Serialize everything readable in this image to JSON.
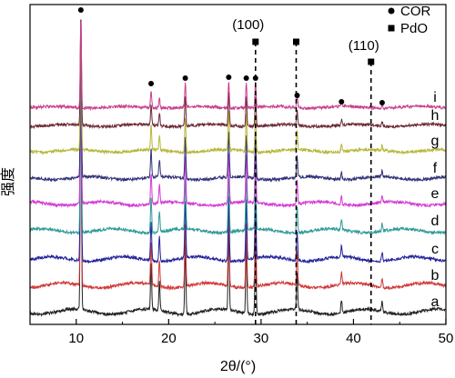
{
  "chart_data": {
    "type": "line",
    "xlabel": "2θ/(°)",
    "ylabel": "强度",
    "xlim": [
      5,
      50
    ],
    "xticks": [
      10,
      20,
      30,
      40,
      50
    ],
    "series_order_bottom_to_top": [
      "a",
      "b",
      "c",
      "d",
      "e",
      "f",
      "g",
      "h",
      "i"
    ],
    "series": [
      {
        "name": "a",
        "color": "#222222"
      },
      {
        "name": "b",
        "color": "#d03a3a"
      },
      {
        "name": "c",
        "color": "#23239a"
      },
      {
        "name": "d",
        "color": "#2f9a98"
      },
      {
        "name": "e",
        "color": "#d33bd3"
      },
      {
        "name": "f",
        "color": "#33337a"
      },
      {
        "name": "g",
        "color": "#b6b63a"
      },
      {
        "name": "h",
        "color": "#6e2a35"
      },
      {
        "name": "i",
        "color": "#c8408e"
      }
    ],
    "peaks_2theta": [
      {
        "x": 10.5,
        "h": 1.0
      },
      {
        "x": 18.1,
        "h": 0.18
      },
      {
        "x": 19.0,
        "h": 0.11
      },
      {
        "x": 21.8,
        "h": 0.26
      },
      {
        "x": 26.5,
        "h": 0.3
      },
      {
        "x": 28.4,
        "h": 0.27
      },
      {
        "x": 29.4,
        "h": 0.28
      },
      {
        "x": 33.9,
        "h": 0.14
      },
      {
        "x": 38.7,
        "h": 0.05
      },
      {
        "x": 43.1,
        "h": 0.04
      }
    ],
    "legend": [
      {
        "marker": "circle",
        "label": "COR"
      },
      {
        "marker": "square",
        "label": "PdO"
      }
    ],
    "cor_markers_2theta": [
      10.5,
      18.1,
      21.8,
      26.5,
      28.4,
      29.4,
      33.9,
      38.7,
      43.1
    ],
    "pdo_markers_2theta": [
      29.4,
      33.8,
      41.9
    ],
    "reference_lines": [
      {
        "x": 29.4,
        "label": "(100)"
      },
      {
        "x": 33.8,
        "label": ""
      },
      {
        "x": 41.9,
        "label": "(110)"
      }
    ]
  }
}
